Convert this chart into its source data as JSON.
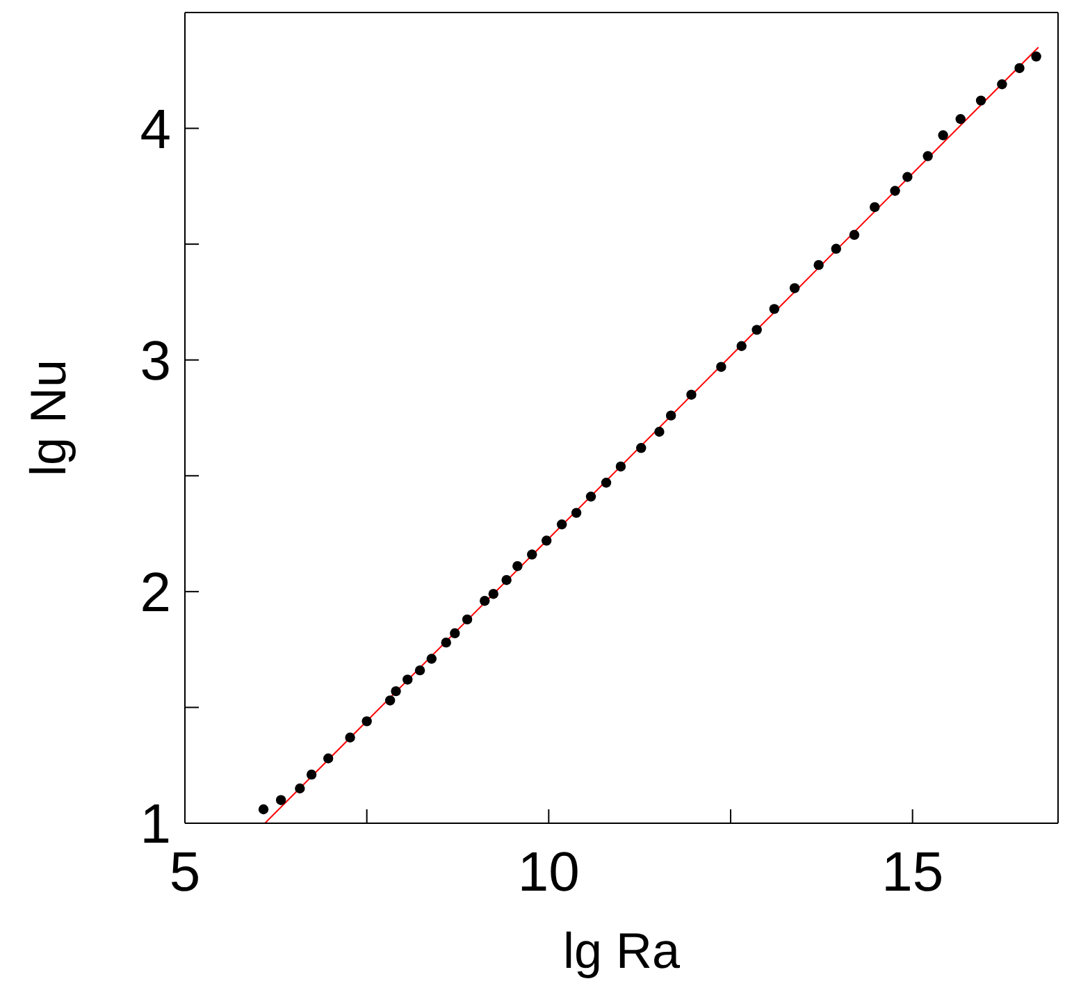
{
  "chart_data": {
    "type": "scatter",
    "xlabel": "lg Ra",
    "ylabel": "lg Nu",
    "xlim": [
      5,
      17
    ],
    "ylim": [
      1,
      4.5
    ],
    "xticks": [
      5,
      {
        "value": 7.5,
        "label": null
      },
      10,
      {
        "value": 12.5,
        "label": null
      },
      15
    ],
    "yticks": [
      1,
      {
        "value": 1.5,
        "label": null
      },
      2,
      {
        "value": 2.5,
        "label": null
      },
      3,
      {
        "value": 3.5,
        "label": null
      },
      4
    ],
    "marker": "circle",
    "series": [
      {
        "color": "#000000",
        "x": [
          6.08,
          6.32,
          6.58,
          6.74,
          6.97,
          7.27,
          7.5,
          7.82,
          7.9,
          8.06,
          8.23,
          8.39,
          8.59,
          8.71,
          8.88,
          9.12,
          9.24,
          9.42,
          9.57,
          9.77,
          9.97,
          10.18,
          10.38,
          10.58,
          10.79,
          10.99,
          11.27,
          11.52,
          11.68,
          11.96,
          12.37,
          12.65,
          12.86,
          13.1,
          13.38,
          13.71,
          13.95,
          14.2,
          14.48,
          14.76,
          14.93,
          15.21,
          15.42,
          15.66,
          15.94,
          16.23,
          16.47,
          16.7
        ],
        "values": [
          1.06,
          1.1,
          1.15,
          1.21,
          1.28,
          1.37,
          1.44,
          1.53,
          1.57,
          1.62,
          1.66,
          1.71,
          1.78,
          1.82,
          1.88,
          1.96,
          1.99,
          2.05,
          2.11,
          2.16,
          2.22,
          2.29,
          2.34,
          2.41,
          2.47,
          2.54,
          2.62,
          2.69,
          2.76,
          2.85,
          2.97,
          3.06,
          3.13,
          3.22,
          3.31,
          3.41,
          3.48,
          3.54,
          3.66,
          3.73,
          3.79,
          3.88,
          3.97,
          4.04,
          4.12,
          4.19,
          4.26,
          4.31
        ]
      },
      {
        "type": "line",
        "color": "#ff0000",
        "marker": "none",
        "line_style": "solid",
        "x": [
          6.1,
          16.73
        ],
        "values": [
          1.0,
          4.35
        ]
      }
    ]
  }
}
